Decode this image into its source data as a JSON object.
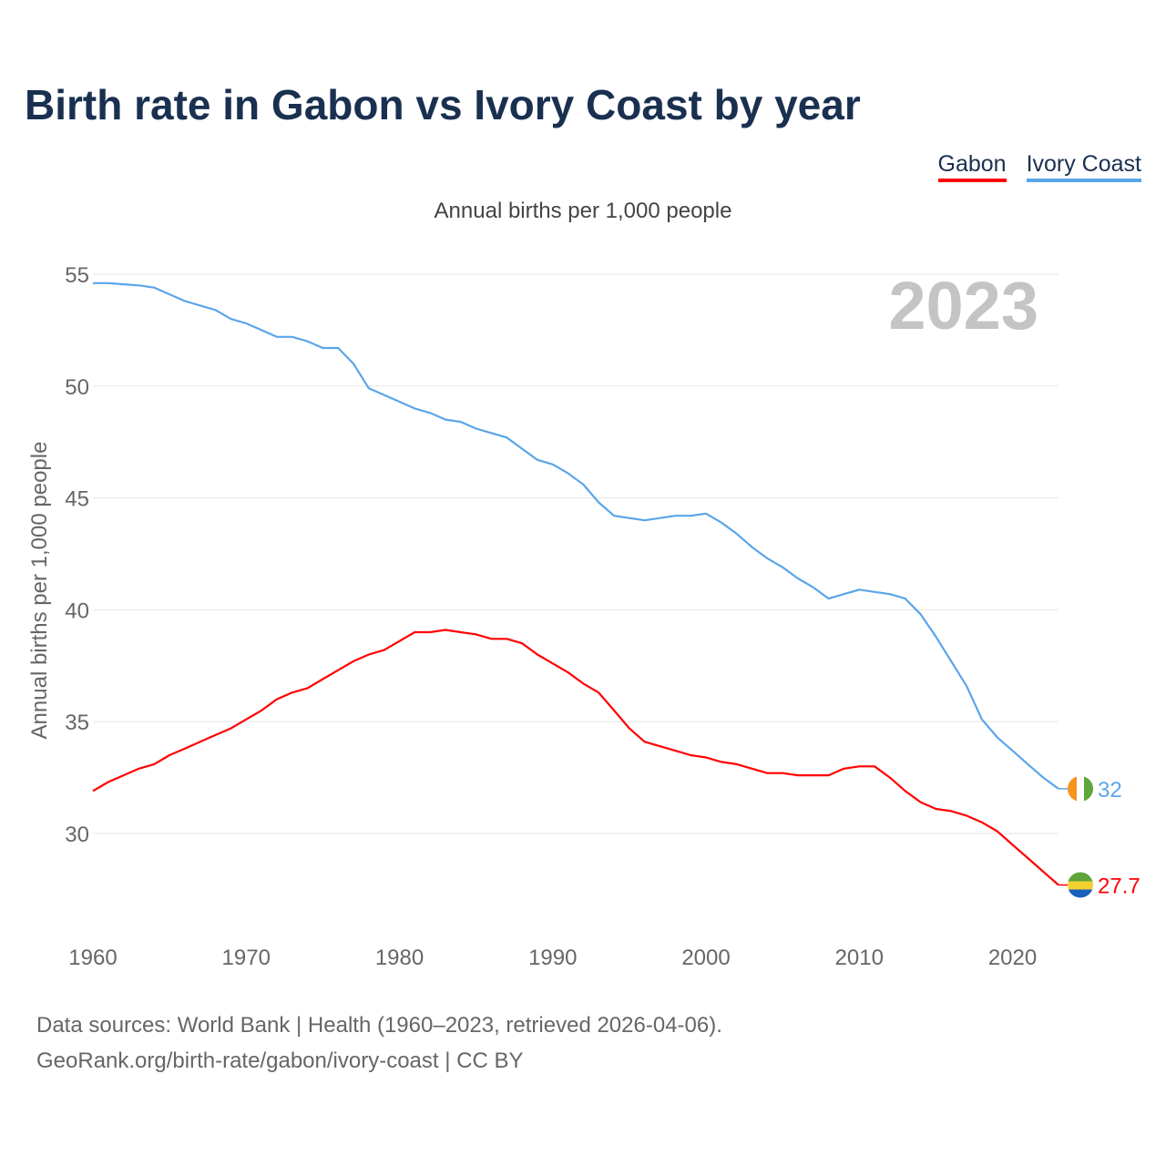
{
  "chart_data": {
    "type": "line",
    "title": "Birth rate in Gabon vs Ivory Coast by year",
    "subtitle": "Annual births per 1,000 people",
    "ylabel": "Annual births per 1,000 people",
    "xlabel": "",
    "year_label": "2023",
    "xlim": [
      1960,
      2023
    ],
    "ylim": [
      26,
      56
    ],
    "xticks": [
      "1960",
      "1970",
      "1980",
      "1990",
      "2000",
      "2010",
      "2020"
    ],
    "yticks": [
      "30",
      "35",
      "40",
      "45",
      "50",
      "55"
    ],
    "grid": true,
    "legend_placement": "top-right",
    "x": [
      1960,
      1961,
      1962,
      1963,
      1964,
      1965,
      1966,
      1967,
      1968,
      1969,
      1970,
      1971,
      1972,
      1973,
      1974,
      1975,
      1976,
      1977,
      1978,
      1979,
      1980,
      1981,
      1982,
      1983,
      1984,
      1985,
      1986,
      1987,
      1988,
      1989,
      1990,
      1991,
      1992,
      1993,
      1994,
      1995,
      1996,
      1997,
      1998,
      1999,
      2000,
      2001,
      2002,
      2003,
      2004,
      2005,
      2006,
      2007,
      2008,
      2009,
      2010,
      2011,
      2012,
      2013,
      2014,
      2015,
      2016,
      2017,
      2018,
      2019,
      2020,
      2021,
      2022,
      2023
    ],
    "series": [
      {
        "name": "Gabon",
        "color": "#ff0000",
        "end_label": "27.7",
        "values": [
          31.9,
          32.3,
          32.6,
          32.9,
          33.1,
          33.5,
          33.8,
          34.1,
          34.4,
          34.7,
          35.1,
          35.5,
          36.0,
          36.3,
          36.5,
          36.9,
          37.3,
          37.7,
          38.0,
          38.2,
          38.6,
          39.0,
          39.0,
          39.1,
          39.0,
          38.9,
          38.7,
          38.7,
          38.5,
          38.0,
          37.6,
          37.2,
          36.7,
          36.3,
          35.5,
          34.7,
          34.1,
          33.9,
          33.7,
          33.5,
          33.4,
          33.2,
          33.1,
          32.9,
          32.7,
          32.7,
          32.6,
          32.6,
          32.6,
          32.9,
          33.0,
          33.0,
          32.5,
          31.9,
          31.4,
          31.1,
          31.0,
          30.8,
          30.5,
          30.1,
          29.5,
          28.9,
          28.3,
          27.7
        ]
      },
      {
        "name": "Ivory Coast",
        "color": "#5aa5ea",
        "end_label": "32",
        "values": [
          54.6,
          54.6,
          54.55,
          54.5,
          54.4,
          54.1,
          53.8,
          53.6,
          53.4,
          53.0,
          52.8,
          52.5,
          52.2,
          52.2,
          52.0,
          51.7,
          51.7,
          51.0,
          49.9,
          49.6,
          49.3,
          49.0,
          48.8,
          48.5,
          48.4,
          48.1,
          47.9,
          47.7,
          47.2,
          46.7,
          46.5,
          46.1,
          45.6,
          44.8,
          44.2,
          44.1,
          44.0,
          44.1,
          44.2,
          44.2,
          44.3,
          43.9,
          43.4,
          42.8,
          42.3,
          41.9,
          41.4,
          41.0,
          40.5,
          40.7,
          40.9,
          40.8,
          40.7,
          40.5,
          39.8,
          38.8,
          37.7,
          36.6,
          35.1,
          34.3,
          33.7,
          33.1,
          32.5,
          32.0
        ]
      }
    ]
  },
  "footer": {
    "line1": "Data sources: World Bank | Health (1960–2023, retrieved 2026-04-06).",
    "line2": "GeoRank.org/birth-rate/gabon/ivory-coast | CC BY"
  }
}
